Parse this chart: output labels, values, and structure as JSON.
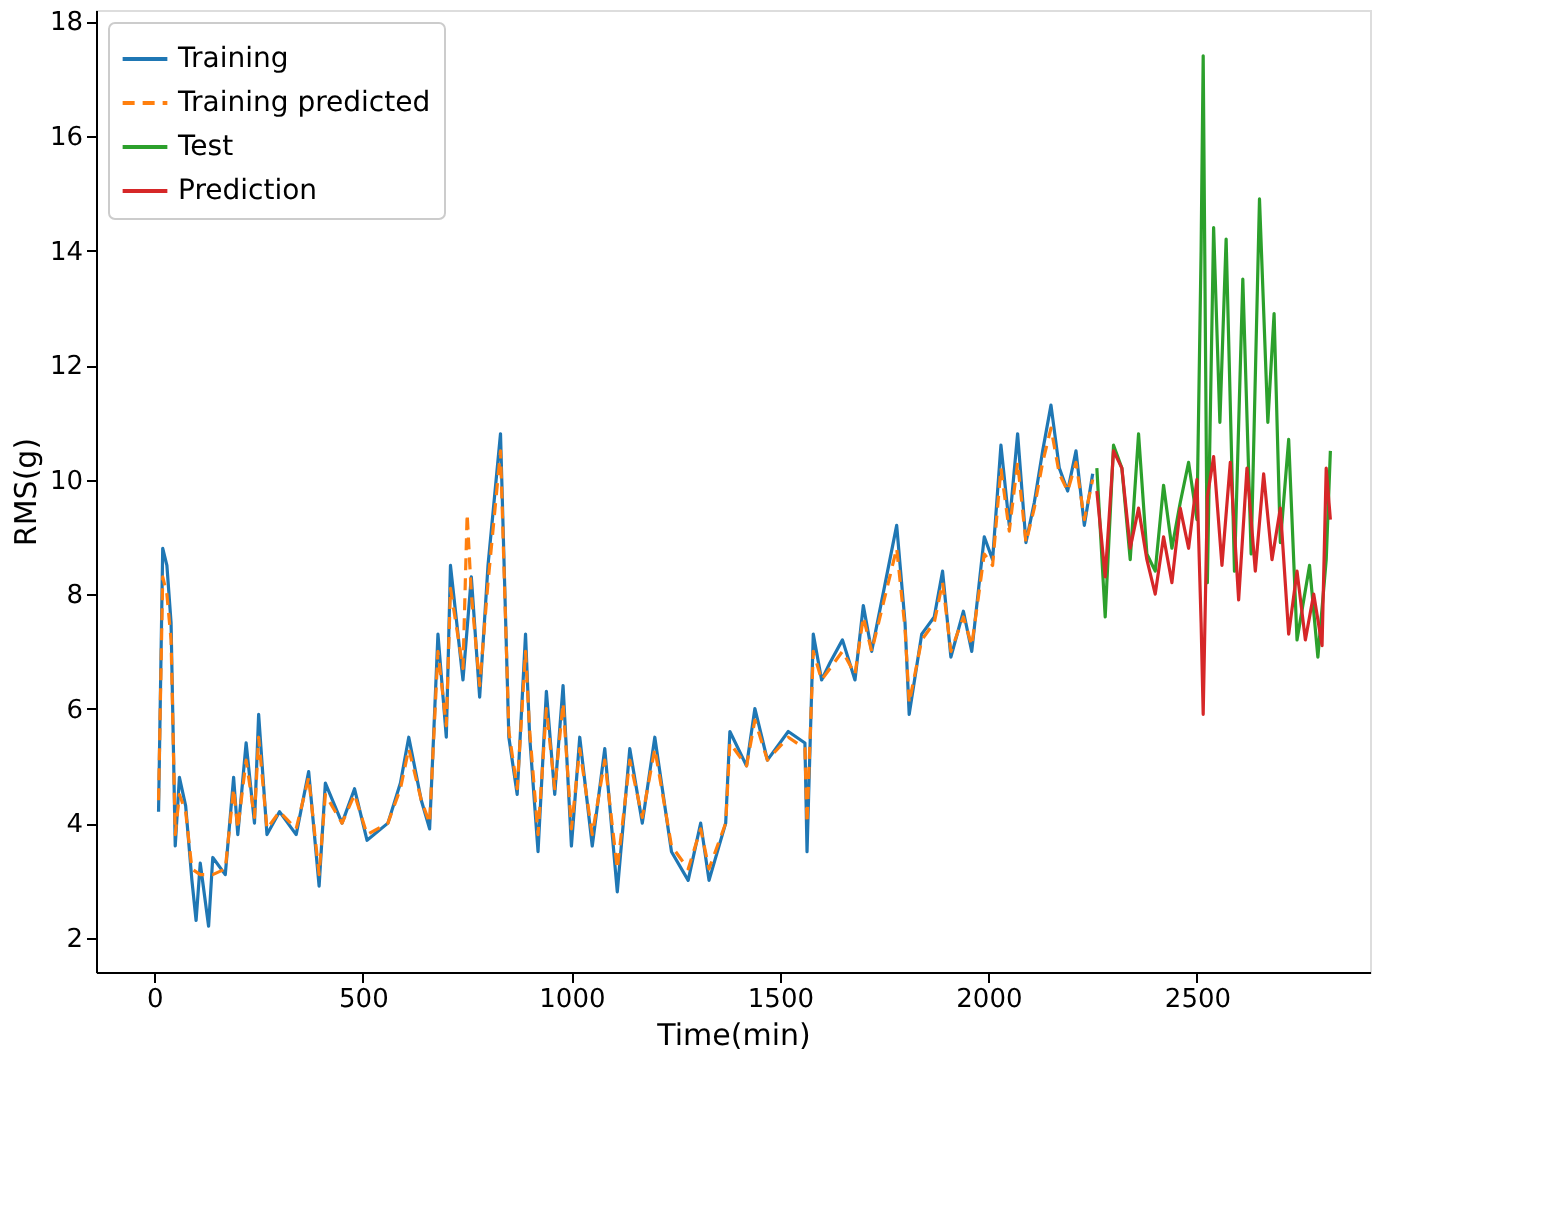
{
  "chart_data": {
    "type": "line",
    "xlabel": "Time(min)",
    "ylabel": "RMS(g)",
    "xlim": [
      -140,
      2915
    ],
    "ylim": [
      1.4,
      18.2
    ],
    "xticks": [
      0,
      500,
      1000,
      1500,
      2000,
      2500
    ],
    "yticks": [
      2,
      4,
      6,
      8,
      10,
      12,
      14,
      16,
      18
    ],
    "grid": false,
    "legend": "top left",
    "series": [
      {
        "name": "Training",
        "color": "#1f77b4",
        "line_style": "solid",
        "x": [
          10,
          20,
          30,
          40,
          50,
          60,
          75,
          90,
          100,
          110,
          130,
          140,
          170,
          190,
          200,
          220,
          240,
          250,
          270,
          300,
          340,
          370,
          395,
          410,
          450,
          480,
          510,
          560,
          590,
          610,
          640,
          660,
          680,
          700,
          710,
          740,
          760,
          780,
          800,
          830,
          850,
          870,
          890,
          900,
          920,
          940,
          960,
          980,
          1000,
          1020,
          1050,
          1080,
          1110,
          1140,
          1170,
          1200,
          1240,
          1280,
          1310,
          1330,
          1370,
          1380,
          1420,
          1440,
          1470,
          1520,
          1560,
          1565,
          1580,
          1600,
          1620,
          1650,
          1680,
          1700,
          1720,
          1780,
          1800,
          1810,
          1840,
          1870,
          1890,
          1910,
          1940,
          1960,
          1990,
          2010,
          2030,
          2050,
          2070,
          2090,
          2110,
          2130,
          2150,
          2170,
          2190,
          2210,
          2230,
          2250
        ],
        "values": [
          4.2,
          8.8,
          8.5,
          7.5,
          3.6,
          4.8,
          4.3,
          3.0,
          2.3,
          3.3,
          2.2,
          3.4,
          3.1,
          4.8,
          3.8,
          5.4,
          4.0,
          5.9,
          3.8,
          4.2,
          3.8,
          4.9,
          2.9,
          4.7,
          4.0,
          4.6,
          3.7,
          4.0,
          4.7,
          5.5,
          4.4,
          3.9,
          7.3,
          5.5,
          8.5,
          6.5,
          8.3,
          6.2,
          8.5,
          10.8,
          5.5,
          4.5,
          7.3,
          5.5,
          3.5,
          6.3,
          4.5,
          6.4,
          3.6,
          5.5,
          3.6,
          5.3,
          2.8,
          5.3,
          4.0,
          5.5,
          3.5,
          3.0,
          4.0,
          3.0,
          4.0,
          5.6,
          5.0,
          6.0,
          5.1,
          5.6,
          5.4,
          3.5,
          7.3,
          6.5,
          6.8,
          7.2,
          6.5,
          7.8,
          7.0,
          9.2,
          7.5,
          5.9,
          7.3,
          7.6,
          8.4,
          6.9,
          7.7,
          7.0,
          9.0,
          8.6,
          10.6,
          9.2,
          10.8,
          8.9,
          9.6,
          10.5,
          11.3,
          10.2,
          9.8,
          10.5,
          9.2,
          10.1
        ]
      },
      {
        "name": "Training predicted",
        "color": "#ff7f0e",
        "line_style": "dashed",
        "x": [
          10,
          20,
          30,
          40,
          50,
          60,
          75,
          90,
          110,
          140,
          170,
          190,
          200,
          220,
          240,
          250,
          270,
          300,
          340,
          370,
          395,
          410,
          450,
          480,
          510,
          560,
          590,
          610,
          640,
          660,
          680,
          700,
          710,
          740,
          750,
          760,
          780,
          800,
          830,
          850,
          870,
          890,
          900,
          920,
          940,
          960,
          980,
          1000,
          1020,
          1050,
          1080,
          1110,
          1140,
          1170,
          1200,
          1240,
          1280,
          1310,
          1330,
          1370,
          1380,
          1420,
          1440,
          1470,
          1520,
          1560,
          1565,
          1580,
          1600,
          1620,
          1650,
          1680,
          1700,
          1720,
          1780,
          1800,
          1810,
          1840,
          1870,
          1890,
          1910,
          1940,
          1960,
          1990,
          2010,
          2030,
          2050,
          2070,
          2090,
          2110,
          2130,
          2150,
          2170,
          2190,
          2210,
          2230,
          2250
        ],
        "values": [
          4.4,
          8.3,
          8.0,
          7.2,
          3.8,
          4.5,
          4.2,
          3.2,
          3.1,
          3.1,
          3.2,
          4.6,
          3.9,
          5.1,
          4.1,
          5.5,
          3.9,
          4.2,
          3.9,
          4.8,
          3.1,
          4.5,
          4.0,
          4.5,
          3.8,
          4.0,
          4.6,
          5.3,
          4.4,
          4.0,
          7.0,
          5.7,
          8.1,
          6.7,
          9.4,
          8.0,
          6.4,
          8.2,
          10.5,
          5.6,
          4.6,
          7.0,
          5.6,
          3.8,
          6.0,
          4.6,
          6.1,
          3.9,
          5.3,
          3.8,
          5.1,
          3.2,
          5.1,
          4.1,
          5.3,
          3.6,
          3.2,
          3.9,
          3.2,
          4.0,
          5.4,
          5.0,
          5.8,
          5.1,
          5.5,
          5.3,
          4.0,
          7.0,
          6.5,
          6.7,
          7.0,
          6.6,
          7.6,
          7.0,
          8.8,
          7.4,
          6.1,
          7.2,
          7.5,
          8.2,
          7.0,
          7.6,
          7.1,
          8.7,
          8.5,
          10.2,
          9.1,
          10.3,
          8.9,
          9.5,
          10.3,
          10.9,
          10.1,
          9.8,
          10.3,
          9.3,
          10.0
        ]
      },
      {
        "name": "Test",
        "color": "#2ca02c",
        "line_style": "solid",
        "x": [
          2260,
          2280,
          2300,
          2320,
          2340,
          2360,
          2380,
          2400,
          2420,
          2440,
          2460,
          2480,
          2500,
          2510,
          2515,
          2525,
          2540,
          2555,
          2570,
          2590,
          2610,
          2630,
          2650,
          2670,
          2685,
          2700,
          2720,
          2740,
          2770,
          2790,
          2810,
          2820
        ],
        "values": [
          10.2,
          7.6,
          10.6,
          10.2,
          8.6,
          10.8,
          8.7,
          8.4,
          9.9,
          8.8,
          9.6,
          10.3,
          9.3,
          14.0,
          17.4,
          8.2,
          14.4,
          11.0,
          14.2,
          8.4,
          13.5,
          8.7,
          14.9,
          11.0,
          12.9,
          8.9,
          10.7,
          7.2,
          8.5,
          6.9,
          8.6,
          10.5
        ]
      },
      {
        "name": "Prediction",
        "color": "#d62728",
        "line_style": "solid",
        "x": [
          2260,
          2280,
          2300,
          2320,
          2340,
          2360,
          2380,
          2400,
          2420,
          2440,
          2460,
          2480,
          2500,
          2510,
          2515,
          2525,
          2540,
          2560,
          2580,
          2600,
          2620,
          2640,
          2660,
          2680,
          2700,
          2720,
          2740,
          2760,
          2780,
          2800,
          2810,
          2820
        ],
        "values": [
          9.8,
          8.3,
          10.5,
          10.2,
          8.8,
          9.5,
          8.6,
          8.0,
          9.0,
          8.2,
          9.5,
          8.8,
          10.0,
          7.5,
          5.9,
          9.7,
          10.4,
          8.5,
          10.3,
          7.9,
          10.2,
          8.4,
          10.1,
          8.6,
          9.5,
          7.3,
          8.4,
          7.2,
          8.0,
          7.1,
          10.2,
          9.3
        ]
      }
    ]
  }
}
